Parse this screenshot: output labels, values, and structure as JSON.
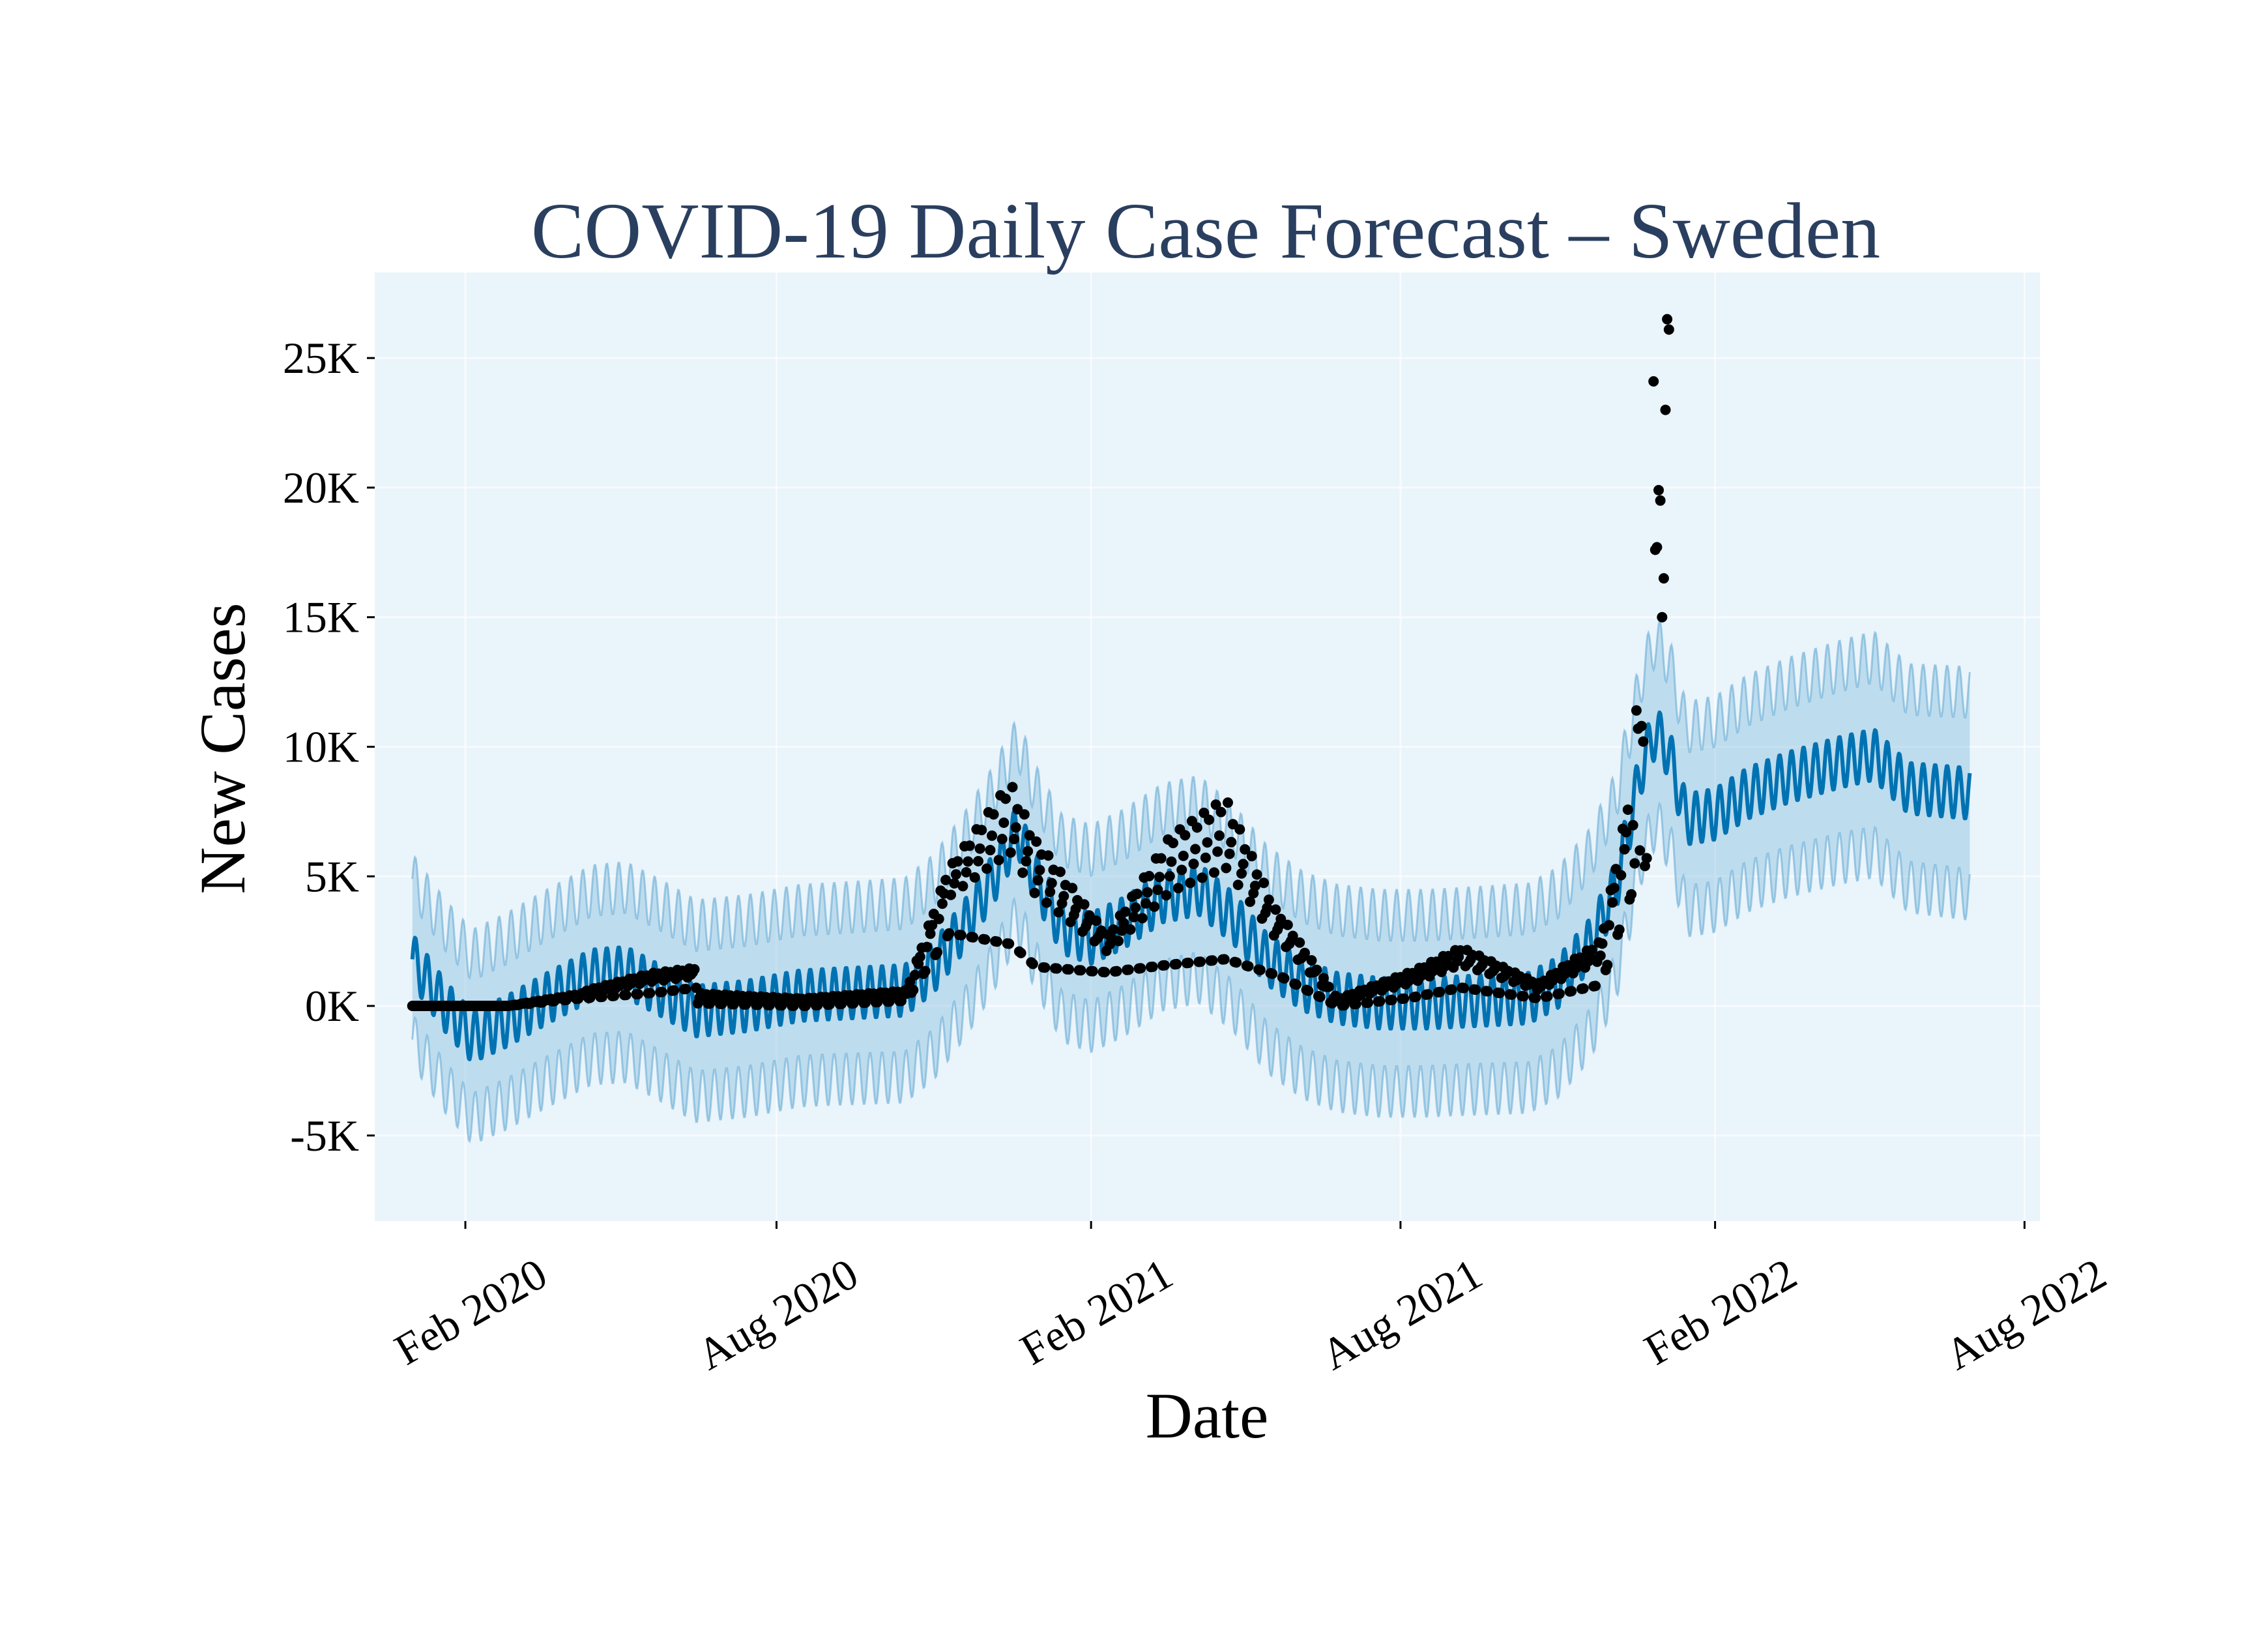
{
  "chart_data": {
    "type": "line",
    "title": "COVID-19 Daily Case Forecast – Sweden",
    "xlabel": "Date",
    "ylabel": "New Cases",
    "x_axis": {
      "type": "date",
      "range": [
        "2019-12-10",
        "2022-08-10"
      ],
      "ticks": [
        {
          "value": "2020-02-01",
          "label": "Feb 2020"
        },
        {
          "value": "2020-08-01",
          "label": "Aug 2020"
        },
        {
          "value": "2021-02-01",
          "label": "Feb 2021"
        },
        {
          "value": "2021-08-01",
          "label": "Aug 2021"
        },
        {
          "value": "2022-02-01",
          "label": "Feb 2022"
        },
        {
          "value": "2022-08-01",
          "label": "Aug 2022"
        }
      ],
      "tick_angle": -30
    },
    "y_axis": {
      "range": [
        -8300,
        28300
      ],
      "ticks": [
        {
          "value": -5000,
          "label": "-5K"
        },
        {
          "value": 0,
          "label": "0K"
        },
        {
          "value": 5000,
          "label": "5K"
        },
        {
          "value": 10000,
          "label": "10K"
        },
        {
          "value": 15000,
          "label": "15K"
        },
        {
          "value": 20000,
          "label": "20K"
        },
        {
          "value": 25000,
          "label": "25K"
        }
      ]
    },
    "grid": true,
    "legend": "none",
    "colors": {
      "plot_background": "#eaf4fb",
      "forecast_line": "#0072b2",
      "interval_band": "#6baed6",
      "observed_points": "#000000",
      "title": "#2a3f5f"
    },
    "series": [
      {
        "kind": "forecast_trend",
        "weekly_amplitude": 1000,
        "points": [
          [
            "2020-01-01",
            1800
          ],
          [
            "2020-01-20",
            0
          ],
          [
            "2020-02-05",
            -1200
          ],
          [
            "2020-02-25",
            -600
          ],
          [
            "2020-03-20",
            300
          ],
          [
            "2020-04-15",
            1200
          ],
          [
            "2020-05-05",
            1300
          ],
          [
            "2020-05-25",
            600
          ],
          [
            "2020-06-15",
            -200
          ],
          [
            "2020-07-15",
            0
          ],
          [
            "2020-08-15",
            400
          ],
          [
            "2020-09-15",
            500
          ],
          [
            "2020-10-15",
            600
          ],
          [
            "2020-11-01",
            1500
          ],
          [
            "2020-11-20",
            3200
          ],
          [
            "2020-12-05",
            4800
          ],
          [
            "2020-12-20",
            6800
          ],
          [
            "2020-12-30",
            5000
          ],
          [
            "2021-01-15",
            3000
          ],
          [
            "2021-02-01",
            2600
          ],
          [
            "2021-02-20",
            3200
          ],
          [
            "2021-03-15",
            4200
          ],
          [
            "2021-04-05",
            4500
          ],
          [
            "2021-04-25",
            3400
          ],
          [
            "2021-05-15",
            1800
          ],
          [
            "2021-06-05",
            800
          ],
          [
            "2021-06-25",
            300
          ],
          [
            "2021-07-20",
            100
          ],
          [
            "2021-08-15",
            100
          ],
          [
            "2021-09-15",
            200
          ],
          [
            "2021-10-15",
            300
          ],
          [
            "2021-11-01",
            900
          ],
          [
            "2021-11-20",
            2400
          ],
          [
            "2021-12-05",
            4600
          ],
          [
            "2021-12-20",
            9200
          ],
          [
            "2021-12-28",
            10600
          ],
          [
            "2022-01-05",
            9800
          ],
          [
            "2022-01-15",
            7200
          ],
          [
            "2022-02-01",
            7400
          ],
          [
            "2022-02-20",
            8200
          ],
          [
            "2022-03-15",
            8800
          ],
          [
            "2022-04-15",
            9400
          ],
          [
            "2022-05-05",
            9700
          ],
          [
            "2022-05-25",
            8400
          ],
          [
            "2022-06-30",
            8200
          ]
        ]
      },
      {
        "kind": "uncertainty_interval",
        "width_points": [
          [
            "2020-01-01",
            3100
          ],
          [
            "2020-03-01",
            3200
          ],
          [
            "2020-06-01",
            3300
          ],
          [
            "2020-09-01",
            3300
          ],
          [
            "2020-12-01",
            3400
          ],
          [
            "2021-03-01",
            3400
          ],
          [
            "2021-06-01",
            3400
          ],
          [
            "2021-09-01",
            3400
          ],
          [
            "2021-12-01",
            3500
          ],
          [
            "2022-03-01",
            3600
          ],
          [
            "2022-06-30",
            3900
          ]
        ]
      },
      {
        "kind": "observed",
        "groups": [
          {
            "start": "2020-01-01",
            "end": "2020-02-25",
            "low": [
              0,
              0
            ],
            "high": [
              0,
              0
            ]
          },
          {
            "start": "2020-02-26",
            "end": "2020-04-10",
            "low": [
              0,
              300
            ],
            "high": [
              0,
              500
            ]
          },
          {
            "start": "2020-04-11",
            "end": "2020-05-20",
            "low": [
              300,
              500
            ],
            "high": [
              600,
              1300
            ]
          },
          {
            "start": "2020-05-21",
            "end": "2020-06-15",
            "low": [
              500,
              700
            ],
            "high": [
              1300,
              1500
            ]
          },
          {
            "start": "2020-06-16",
            "end": "2020-08-15",
            "low": [
              100,
              0
            ],
            "high": [
              500,
              300
            ]
          },
          {
            "start": "2020-08-16",
            "end": "2020-10-15",
            "low": [
              0,
              200
            ],
            "high": [
              300,
              600
            ]
          },
          {
            "start": "2020-10-16",
            "end": "2020-11-10",
            "low": [
              200,
              2800
            ],
            "high": [
              600,
              5500
            ]
          },
          {
            "start": "2020-11-11",
            "end": "2020-12-15",
            "low": [
              2800,
              2400
            ],
            "high": [
              5500,
              8800
            ]
          },
          {
            "start": "2020-12-16",
            "end": "2020-12-31",
            "low": [
              2400,
              1500
            ],
            "high": [
              8800,
              6500
            ]
          },
          {
            "start": "2021-01-01",
            "end": "2021-02-10",
            "low": [
              1500,
              1300
            ],
            "high": [
              6500,
              2800
            ]
          },
          {
            "start": "2021-02-11",
            "end": "2021-03-20",
            "low": [
              1300,
              1600
            ],
            "high": [
              2800,
              6800
            ]
          },
          {
            "start": "2021-03-21",
            "end": "2021-04-20",
            "low": [
              1600,
              1800
            ],
            "high": [
              6800,
              8200
            ]
          },
          {
            "start": "2021-04-21",
            "end": "2021-05-20",
            "low": [
              1800,
              1200
            ],
            "high": [
              8200,
              3800
            ]
          },
          {
            "start": "2021-05-21",
            "end": "2021-06-25",
            "low": [
              1200,
              0
            ],
            "high": [
              3800,
              300
            ]
          },
          {
            "start": "2021-06-26",
            "end": "2021-08-05",
            "low": [
              0,
              300
            ],
            "high": [
              300,
              1300
            ]
          },
          {
            "start": "2021-08-06",
            "end": "2021-09-05",
            "low": [
              300,
              700
            ],
            "high": [
              1300,
              2300
            ]
          },
          {
            "start": "2021-09-06",
            "end": "2021-10-20",
            "low": [
              700,
              300
            ],
            "high": [
              2300,
              900
            ]
          },
          {
            "start": "2021-10-21",
            "end": "2021-11-25",
            "low": [
              300,
              800
            ],
            "high": [
              900,
              2500
            ]
          },
          {
            "start": "2021-11-26",
            "end": "2021-12-15",
            "low": [
              800,
              4500
            ],
            "high": [
              2500,
              9000
            ]
          }
        ],
        "peak_points": [
          [
            "2021-12-16",
            5500
          ],
          [
            "2021-12-17",
            11400
          ],
          [
            "2021-12-18",
            10700
          ],
          [
            "2021-12-19",
            6000
          ],
          [
            "2021-12-20",
            10800
          ],
          [
            "2021-12-21",
            10200
          ],
          [
            "2021-12-22",
            5400
          ],
          [
            "2021-12-23",
            5700
          ],
          [
            "2021-12-27",
            24100
          ],
          [
            "2021-12-28",
            17600
          ],
          [
            "2021-12-29",
            17700
          ],
          [
            "2021-12-30",
            19900
          ],
          [
            "2021-12-31",
            19500
          ],
          [
            "2022-01-01",
            15000
          ],
          [
            "2022-01-02",
            16500
          ],
          [
            "2022-01-03",
            23000
          ],
          [
            "2022-01-04",
            26500
          ],
          [
            "2022-01-05",
            26100
          ]
        ],
        "last_date": "2022-01-05"
      }
    ]
  },
  "tick_labels": {
    "x0": "Feb 2020",
    "x1": "Aug 2020",
    "x2": "Feb 2021",
    "x3": "Aug 2021",
    "x4": "Feb 2022",
    "x5": "Aug 2022",
    "y0": "-5K",
    "y1": "0K",
    "y2": "5K",
    "y3": "10K",
    "y4": "15K",
    "y5": "20K",
    "y6": "25K"
  }
}
